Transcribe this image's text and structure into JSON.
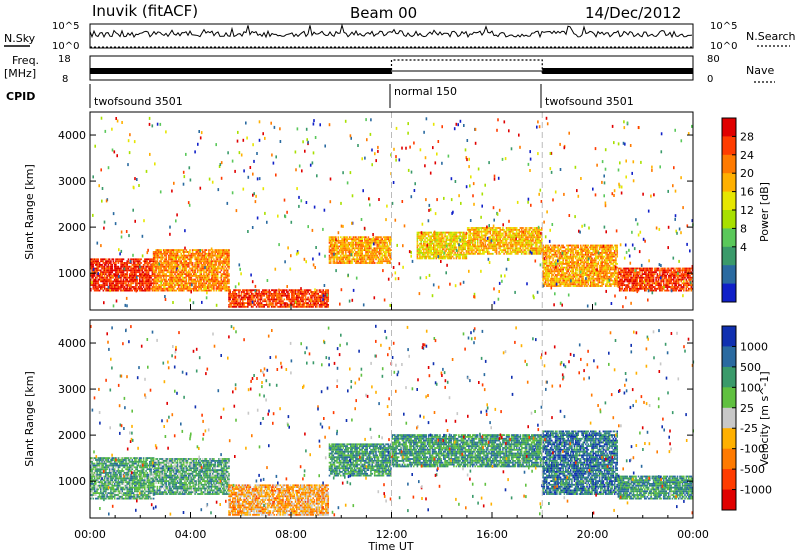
{
  "header": {
    "station": "Inuvik (fitACF)",
    "beam": "Beam 00",
    "date": "14/Dec/2012"
  },
  "panels": {
    "nsky": {
      "label": "N.Sky",
      "left_ticks": [
        "10^5",
        "10^0"
      ],
      "right_ticks": [
        "10^5",
        "10^0"
      ],
      "right_label": "N.Search"
    },
    "freq": {
      "label_line1": "Freq.",
      "label_line2": "[MHz]",
      "left_ticks": [
        "18",
        "8"
      ],
      "right_ticks": [
        "80",
        "0"
      ],
      "right_label": "Nave"
    },
    "cpid": {
      "label": "CPID",
      "segments": [
        "twofsound 3501",
        "normal 150",
        "twofsound 3501"
      ],
      "segment_starts_hours": [
        0,
        12,
        18
      ]
    }
  },
  "chart_data": [
    {
      "type": "heatmap",
      "name": "power",
      "ylabel": "Slant Range [km]",
      "xlabel": "",
      "xlim_hours": [
        0,
        24
      ],
      "ylim_km": [
        200,
        4500
      ],
      "y_ticks": [
        "4000",
        "3000",
        "2000",
        "1000"
      ],
      "colorbar": {
        "label": "Power [dB]",
        "ticks": [
          "28",
          "24",
          "20",
          "16",
          "12",
          "8",
          "4"
        ],
        "colors": [
          "#e00000",
          "#ff3c00",
          "#ff7a00",
          "#ffb000",
          "#e6e600",
          "#a8e000",
          "#5ac85a",
          "#3a9a6a",
          "#2a6aa0",
          "#1020c8"
        ]
      },
      "bands": [
        {
          "t0": 0,
          "t1": 2.5,
          "r0": 600,
          "r1": 1300,
          "level": 0.95
        },
        {
          "t0": 2.5,
          "t1": 5.5,
          "r0": 600,
          "r1": 1500,
          "level": 0.75
        },
        {
          "t0": 5.5,
          "t1": 9.5,
          "r0": 250,
          "r1": 650,
          "level": 0.9
        },
        {
          "t0": 9.5,
          "t1": 12,
          "r0": 1200,
          "r1": 1800,
          "level": 0.7
        },
        {
          "t0": 13,
          "t1": 15,
          "r0": 1300,
          "r1": 1900,
          "level": 0.6
        },
        {
          "t0": 15,
          "t1": 18,
          "r0": 1400,
          "r1": 2000,
          "level": 0.65
        },
        {
          "t0": 18,
          "t1": 21,
          "r0": 700,
          "r1": 1600,
          "level": 0.7
        },
        {
          "t0": 21,
          "t1": 24,
          "r0": 600,
          "r1": 1100,
          "level": 0.9
        }
      ]
    },
    {
      "type": "heatmap",
      "name": "velocity",
      "ylabel": "Slant Range [km]",
      "xlabel": "Time UT",
      "xlim_hours": [
        0,
        24
      ],
      "ylim_km": [
        200,
        4500
      ],
      "y_ticks": [
        "4000",
        "3000",
        "2000",
        "1000"
      ],
      "x_ticks": [
        "00:00",
        "04:00",
        "08:00",
        "12:00",
        "16:00",
        "20:00",
        "00:00"
      ],
      "colorbar": {
        "label": "Velocity [m s^-1]",
        "ticks": [
          "1000",
          "500",
          "100",
          "25",
          "-25",
          "-100",
          "-500",
          "-1000"
        ],
        "colors": [
          "#1030b0",
          "#2a6aa0",
          "#3a9a6a",
          "#60c040",
          "#c8c8c8",
          "#ffb000",
          "#ff7a00",
          "#ff3c00",
          "#e00000"
        ]
      },
      "bands": [
        {
          "t0": 0,
          "t1": 2.5,
          "r0": 600,
          "r1": 1500,
          "level": 0.7
        },
        {
          "t0": 2.5,
          "t1": 5.5,
          "r0": 700,
          "r1": 1500,
          "level": 0.7
        },
        {
          "t0": 5.5,
          "t1": 9.5,
          "r0": 250,
          "r1": 900,
          "level": 0.35
        },
        {
          "t0": 9.5,
          "t1": 12,
          "r0": 1100,
          "r1": 1800,
          "level": 0.75
        },
        {
          "t0": 12,
          "t1": 18,
          "r0": 1300,
          "r1": 2000,
          "level": 0.75
        },
        {
          "t0": 18,
          "t1": 21,
          "r0": 700,
          "r1": 2100,
          "level": 0.85
        },
        {
          "t0": 21,
          "t1": 24,
          "r0": 600,
          "r1": 1100,
          "level": 0.75
        }
      ]
    }
  ]
}
